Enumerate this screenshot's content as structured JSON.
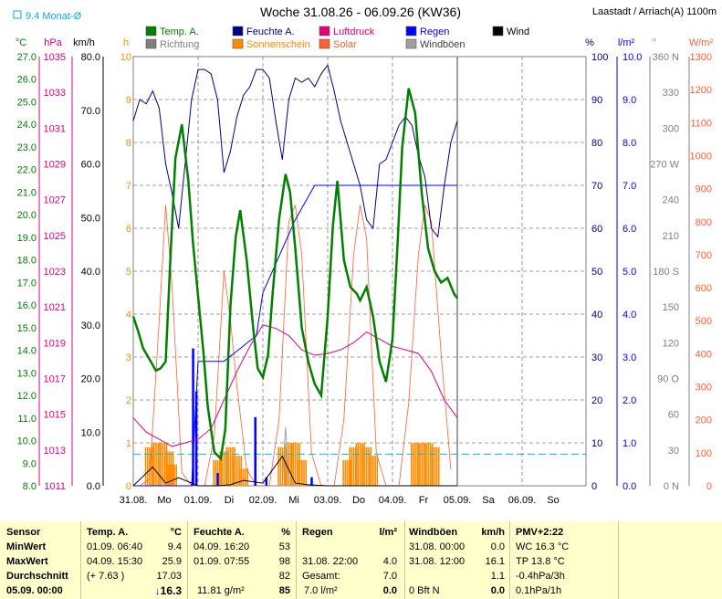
{
  "chart_data": {
    "type": "line",
    "title": "Woche 31.08.26 - 06.09.26 (KW36)",
    "location": "Laastadt / Arriach(A) 1100m",
    "month_avg_label": "9.4 Monat-Ø",
    "x_tick_labels": [
      "31.08.",
      "Mo",
      "01.09.",
      "Di",
      "02.09.",
      "Mi",
      "03.09.",
      "Do",
      "04.09.",
      "Fr",
      "05.09.",
      "Sa",
      "06.09.",
      "So"
    ],
    "legend": [
      {
        "label": "Temp. A.",
        "color": "#008000"
      },
      {
        "label": "Feuchte A.",
        "color": "#000080"
      },
      {
        "label": "Luftdruck",
        "color": "#e0007f"
      },
      {
        "label": "Regen",
        "color": "#0000ff"
      },
      {
        "label": "Wind",
        "color": "#000000"
      },
      {
        "label": "Richtung",
        "color": "#808080"
      },
      {
        "label": "Sonnenschein",
        "color": "#ff8c00"
      },
      {
        "label": "Solar",
        "color": "#ff6030"
      },
      {
        "label": "Windböen",
        "color": "#a0a0a0"
      }
    ],
    "axes": {
      "temp": {
        "unit": "°C",
        "color": "#008000",
        "ticks": [
          "27.0",
          "26.0",
          "25.0",
          "24.0",
          "23.0",
          "22.0",
          "21.0",
          "20.0",
          "19.0",
          "18.0",
          "17.0",
          "16.0",
          "15.0",
          "14.0",
          "13.0",
          "12.0",
          "11.0",
          "10.0",
          "9.0",
          "8.0"
        ],
        "range": [
          8,
          27
        ]
      },
      "pressure": {
        "unit": "hPa",
        "color": "#e0007f",
        "ticks": [
          "1035",
          "1033",
          "1031",
          "1029",
          "1027",
          "1025",
          "1023",
          "1021",
          "1019",
          "1017",
          "1015",
          "1013",
          "1011"
        ],
        "range": [
          1011,
          1035
        ]
      },
      "wind": {
        "unit": "km/h",
        "color": "#000000",
        "ticks": [
          "80.0",
          "70.0",
          "60.0",
          "50.0",
          "40.0",
          "30.0",
          "20.0",
          "10.0",
          "0.0"
        ],
        "range": [
          0,
          80
        ]
      },
      "sunshine": {
        "unit": "h",
        "color": "#ff8c00",
        "ticks": [
          "10",
          "9",
          "8",
          "7",
          "6",
          "5",
          "4",
          "3",
          "2",
          "1",
          "0"
        ],
        "range": [
          0,
          10
        ]
      },
      "humidity": {
        "unit": "%",
        "color": "#000080",
        "ticks": [
          "100",
          "90",
          "80",
          "70",
          "60",
          "50",
          "40",
          "30",
          "20",
          "10",
          "0"
        ],
        "range": [
          0,
          100
        ]
      },
      "rain": {
        "unit": "l/m²",
        "color": "#0000ff",
        "ticks": [
          "10.0",
          "9.0",
          "8.0",
          "7.0",
          "6.0",
          "5.0",
          "4.0",
          "3.0",
          "2.0",
          "1.0",
          "0.0"
        ],
        "range": [
          0,
          10
        ]
      },
      "direction": {
        "unit": "°",
        "color": "#808080",
        "ticks": [
          "360 N",
          "330",
          "300",
          "270 W",
          "240",
          "210",
          "180 S",
          "150",
          "120",
          "90 O",
          "60",
          "30",
          "0 N"
        ],
        "range": [
          0,
          360
        ]
      },
      "solar": {
        "unit": "W/m²",
        "color": "#ff6030",
        "ticks": [
          "1300",
          "1200",
          "1100",
          "1000",
          "900",
          "800",
          "700",
          "600",
          "500",
          "400",
          "300",
          "200",
          "100",
          "0"
        ],
        "range": [
          0,
          1300
        ]
      }
    },
    "series": [
      {
        "name": "Temp. A.",
        "axis": "temp",
        "x": [
          0,
          0.08,
          0.15,
          0.25,
          0.35,
          0.42,
          0.5,
          0.58,
          0.65,
          0.75,
          0.85,
          0.92,
          1.0,
          1.08,
          1.15,
          1.25,
          1.35,
          1.42,
          1.5,
          1.58,
          1.65,
          1.75,
          1.85,
          1.92,
          2.0,
          2.08,
          2.15,
          2.25,
          2.35,
          2.42,
          2.5,
          2.6,
          2.7,
          2.8,
          2.9,
          3.0,
          3.08,
          3.15,
          3.25,
          3.35,
          3.45,
          3.5,
          3.6,
          3.7,
          3.8,
          3.9,
          4.0,
          4.08,
          4.15,
          4.25,
          4.35,
          4.45,
          4.55,
          4.65,
          4.75,
          4.85,
          4.95,
          5.0
        ],
        "y": [
          15.5,
          14.8,
          14.1,
          13.6,
          13.1,
          13.2,
          13.5,
          18.5,
          22.5,
          24.0,
          21.5,
          18.8,
          16.4,
          14.0,
          11.5,
          9.5,
          9.2,
          10.5,
          16.0,
          19.0,
          20.2,
          18.0,
          15.0,
          13.2,
          12.8,
          13.8,
          16.5,
          19.8,
          21.8,
          21.0,
          18.5,
          15.0,
          13.5,
          12.5,
          12.0,
          15.5,
          19.5,
          21.5,
          18.0,
          16.8,
          16.5,
          16.2,
          16.8,
          15.5,
          13.5,
          12.6,
          14.5,
          18.8,
          23.0,
          25.6,
          24.5,
          21.0,
          18.5,
          17.5,
          17.0,
          17.2,
          16.5,
          16.3
        ]
      },
      {
        "name": "Feuchte A.",
        "axis": "humidity",
        "x": [
          0,
          0.1,
          0.2,
          0.3,
          0.4,
          0.5,
          0.6,
          0.7,
          0.8,
          0.9,
          1.0,
          1.1,
          1.2,
          1.3,
          1.4,
          1.5,
          1.6,
          1.7,
          1.8,
          1.9,
          2.0,
          2.1,
          2.2,
          2.3,
          2.4,
          2.5,
          2.6,
          2.7,
          2.8,
          2.9,
          3.0,
          3.1,
          3.2,
          3.3,
          3.4,
          3.5,
          3.6,
          3.7,
          3.8,
          3.9,
          4.0,
          4.1,
          4.2,
          4.3,
          4.4,
          4.5,
          4.6,
          4.7,
          4.8,
          4.9,
          5.0
        ],
        "y": [
          85,
          90,
          89,
          92,
          88,
          75,
          68,
          60,
          75,
          90,
          97,
          97,
          96,
          90,
          73,
          78,
          86,
          91,
          93,
          97,
          97,
          95,
          85,
          76,
          90,
          95,
          94,
          95,
          93,
          96,
          98,
          92,
          85,
          80,
          75,
          70,
          62,
          60,
          75,
          76,
          80,
          84,
          86,
          84,
          77,
          72,
          60,
          58,
          70,
          80,
          85
        ]
      },
      {
        "name": "Luftdruck",
        "axis": "pressure",
        "x": [
          0,
          0.2,
          0.4,
          0.6,
          0.8,
          1.0,
          1.2,
          1.4,
          1.6,
          1.8,
          2.0,
          2.2,
          2.4,
          2.6,
          2.8,
          3.0,
          3.2,
          3.4,
          3.6,
          3.8,
          4.0,
          4.2,
          4.4,
          4.6,
          4.8,
          5.0
        ],
        "y": [
          1014.8,
          1014.0,
          1013.6,
          1013.2,
          1013.4,
          1013.6,
          1014.2,
          1015.8,
          1017.4,
          1018.8,
          1020.0,
          1019.8,
          1019.4,
          1018.6,
          1018.3,
          1018.4,
          1018.6,
          1019.0,
          1019.6,
          1019.2,
          1018.8,
          1018.6,
          1018.4,
          1017.4,
          1015.8,
          1014.8
        ]
      },
      {
        "name": "Wind",
        "axis": "wind",
        "x": [
          0,
          0.3,
          0.5,
          0.7,
          1.0,
          1.3,
          1.5,
          1.7,
          2.0,
          2.3,
          2.5,
          2.7,
          3.0,
          3.3,
          3.5,
          3.7,
          4.0,
          4.5,
          5.0
        ],
        "y": [
          0,
          3.5,
          0.5,
          1.5,
          0,
          0,
          0.2,
          1.0,
          0.5,
          5.5,
          0.5,
          0.2,
          0,
          0,
          0,
          0,
          0,
          0,
          0
        ]
      },
      {
        "name": "Windböen",
        "axis": "wind",
        "x": [
          2.3,
          2.35,
          2.4,
          2.5
        ],
        "y": [
          0,
          11.0,
          1.0,
          0
        ]
      },
      {
        "name": "Regen",
        "axis": "rain",
        "x": [
          0,
          0.5,
          0.9,
          1.0,
          1.4,
          1.9,
          2.0,
          2.5,
          2.8,
          3.0,
          3.5,
          4.0,
          4.5,
          5.0
        ],
        "y": [
          0,
          0,
          0,
          2.9,
          2.9,
          3.5,
          4.5,
          6.2,
          7.0,
          7.0,
          7.0,
          7.0,
          7.0,
          7.0
        ]
      },
      {
        "name": "Solar",
        "axis": "solar",
        "x": [
          0.1,
          0.25,
          0.4,
          0.5,
          0.6,
          0.75,
          0.9,
          1.1,
          1.25,
          1.4,
          1.5,
          1.6,
          1.75,
          1.9,
          2.1,
          2.25,
          2.4,
          2.5,
          2.6,
          2.75,
          2.9,
          3.1,
          3.25,
          3.4,
          3.5,
          3.6,
          3.75,
          3.9,
          4.1,
          4.25,
          4.4,
          4.5,
          4.6,
          4.75,
          4.9
        ],
        "y": [
          0,
          20,
          500,
          850,
          600,
          40,
          0,
          0,
          150,
          650,
          500,
          300,
          50,
          0,
          0,
          200,
          800,
          850,
          700,
          100,
          0,
          0,
          200,
          700,
          850,
          750,
          100,
          0,
          0,
          250,
          700,
          850,
          800,
          400,
          50
        ]
      },
      {
        "name": "Sonnenschein",
        "axis": "sunshine",
        "x": [
          0.25,
          0.35,
          0.45,
          0.55,
          0.6,
          1.3,
          1.4,
          1.5,
          1.6,
          1.7,
          2.3,
          2.4,
          2.5,
          2.6,
          3.3,
          3.4,
          3.5,
          3.6,
          3.7,
          4.35,
          4.45,
          4.55,
          4.65
        ],
        "y": [
          0.9,
          1.0,
          1.0,
          0.8,
          0.5,
          0.6,
          0.8,
          0.9,
          0.7,
          0.4,
          0.9,
          1.0,
          1.0,
          0.6,
          0.6,
          0.9,
          1.0,
          0.9,
          0.7,
          1.0,
          1.0,
          1.0,
          0.9
        ]
      }
    ],
    "rain_bars": {
      "x": [
        0.92,
        0.97,
        1.3,
        1.88,
        2.05,
        2.75
      ],
      "y": [
        3.2,
        2.2,
        0.3,
        1.6,
        0.2,
        0.2
      ]
    },
    "month_avg_temp": 9.4
  },
  "footer": {
    "sensor": {
      "header": "Sensor",
      "rows": [
        "MinWert",
        "MaxWert",
        "Durchschnitt",
        "05.09.  00:00"
      ]
    },
    "temp": {
      "header": "Temp. A.",
      "unit": "°C",
      "rows": [
        [
          "01.09.  06:40",
          "9.4"
        ],
        [
          "04.09.  15:30",
          "25.9"
        ],
        [
          "(+ 7.63 )",
          "17.03"
        ],
        [
          "",
          "16.3"
        ]
      ]
    },
    "humid": {
      "header": "Feuchte A.",
      "unit": "%",
      "rows": [
        [
          "04.09.  16:20",
          "53"
        ],
        [
          "01.09.  07:55",
          "98"
        ],
        [
          "",
          "82"
        ],
        [
          "11.81 g/m²",
          "85"
        ]
      ]
    },
    "rain": {
      "header": "Regen",
      "unit": "l/m²",
      "rows": [
        [
          "",
          ""
        ],
        [
          "31.08.  22:00",
          "4.0"
        ],
        [
          "Gesamt:",
          "7.0"
        ],
        [
          "7.0 l/m²",
          "0.0"
        ]
      ]
    },
    "gust": {
      "header": "Windböen",
      "unit": "km/h",
      "rows": [
        [
          "31.08.  00:00",
          "0.0"
        ],
        [
          "31.08.  12:00",
          "16.1"
        ],
        [
          "",
          "1.1"
        ],
        [
          "0 Bft N",
          "0.0"
        ]
      ]
    },
    "pmv": {
      "header": "PMV+2:22",
      "rows": [
        "WC 16.3 °C",
        "TP 13.8 °C",
        "-0.4hPa/3h",
        "0.1hPa/1h"
      ]
    }
  }
}
